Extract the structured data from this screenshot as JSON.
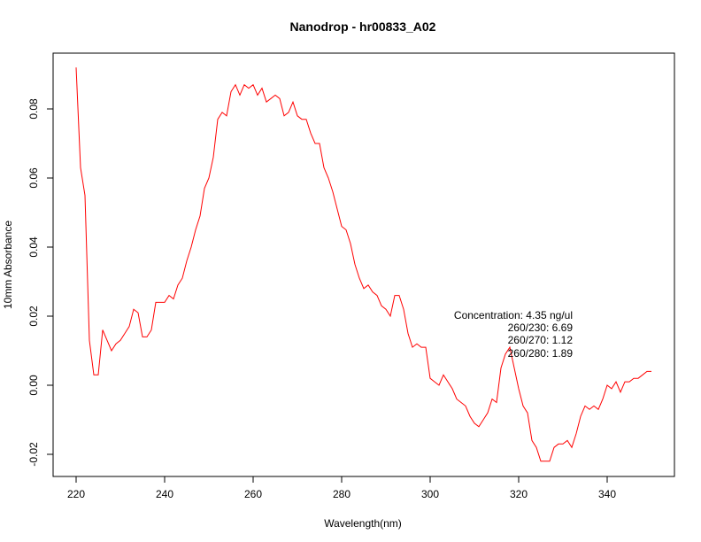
{
  "chart_data": {
    "type": "line",
    "title": "Nanodrop - hr00833_A02",
    "xlabel": "Wavelength(nm)",
    "ylabel": "10mm Absorbance",
    "xlim": [
      215,
      350
    ],
    "ylim": [
      -0.025,
      0.095
    ],
    "x_ticks": [
      220,
      240,
      260,
      280,
      300,
      320,
      340
    ],
    "y_ticks": [
      -0.02,
      0.0,
      0.02,
      0.04,
      0.06,
      0.08
    ],
    "x_tick_labels": [
      "220",
      "240",
      "260",
      "280",
      "300",
      "320",
      "340"
    ],
    "y_tick_labels": [
      "-0.02",
      "0.00",
      "0.02",
      "0.04",
      "0.06",
      "0.08"
    ],
    "grid": false,
    "series": [
      {
        "color": "#ff0000",
        "x": [
          220,
          221,
          222,
          223,
          224,
          225,
          226,
          227,
          228,
          229,
          230,
          231,
          232,
          233,
          234,
          235,
          236,
          237,
          238,
          239,
          240,
          241,
          242,
          243,
          244,
          245,
          246,
          247,
          248,
          249,
          250,
          251,
          252,
          253,
          254,
          255,
          256,
          257,
          258,
          259,
          260,
          261,
          262,
          263,
          264,
          265,
          266,
          267,
          268,
          269,
          270,
          271,
          272,
          273,
          274,
          275,
          276,
          277,
          278,
          279,
          280,
          281,
          282,
          283,
          284,
          285,
          286,
          287,
          288,
          289,
          290,
          291,
          292,
          293,
          294,
          295,
          296,
          297,
          298,
          299,
          300,
          301,
          302,
          303,
          304,
          305,
          306,
          307,
          308,
          309,
          310,
          311,
          312,
          313,
          314,
          315,
          316,
          317,
          318,
          319,
          320,
          321,
          322,
          323,
          324,
          325,
          326,
          327,
          328,
          329,
          330,
          331,
          332,
          333,
          334,
          335,
          336,
          337,
          338,
          339,
          340,
          341,
          342,
          343,
          344,
          345,
          346,
          347,
          348,
          349,
          350
        ],
        "y": [
          0.092,
          0.063,
          0.055,
          0.013,
          0.003,
          0.003,
          0.016,
          0.013,
          0.01,
          0.012,
          0.013,
          0.015,
          0.017,
          0.022,
          0.021,
          0.014,
          0.014,
          0.016,
          0.024,
          0.024,
          0.024,
          0.026,
          0.025,
          0.029,
          0.031,
          0.036,
          0.04,
          0.045,
          0.049,
          0.057,
          0.06,
          0.066,
          0.077,
          0.079,
          0.078,
          0.085,
          0.087,
          0.084,
          0.087,
          0.086,
          0.087,
          0.084,
          0.086,
          0.082,
          0.083,
          0.084,
          0.083,
          0.078,
          0.079,
          0.082,
          0.078,
          0.077,
          0.077,
          0.073,
          0.07,
          0.07,
          0.063,
          0.06,
          0.056,
          0.051,
          0.046,
          0.045,
          0.041,
          0.035,
          0.031,
          0.028,
          0.029,
          0.027,
          0.026,
          0.023,
          0.022,
          0.02,
          0.026,
          0.026,
          0.022,
          0.015,
          0.011,
          0.012,
          0.011,
          0.011,
          0.002,
          0.001,
          0.0,
          0.003,
          0.001,
          -0.001,
          -0.004,
          -0.005,
          -0.006,
          -0.009,
          -0.011,
          -0.012,
          -0.01,
          -0.008,
          -0.004,
          -0.005,
          0.005,
          0.009,
          0.011,
          0.005,
          -0.001,
          -0.006,
          -0.008,
          -0.016,
          -0.018,
          -0.022,
          -0.022,
          -0.022,
          -0.018,
          -0.017,
          -0.017,
          -0.016,
          -0.018,
          -0.014,
          -0.009,
          -0.006,
          -0.007,
          -0.006,
          -0.007,
          -0.004,
          0.0,
          -0.001,
          0.001,
          -0.002,
          0.001,
          0.001,
          0.002,
          0.002,
          0.003,
          0.004,
          0.004
        ]
      }
    ],
    "annotations": [
      "Concentration: 4.35 ng/ul",
      "260/230: 6.69",
      "260/270: 1.12",
      "260/280: 1.89"
    ]
  }
}
